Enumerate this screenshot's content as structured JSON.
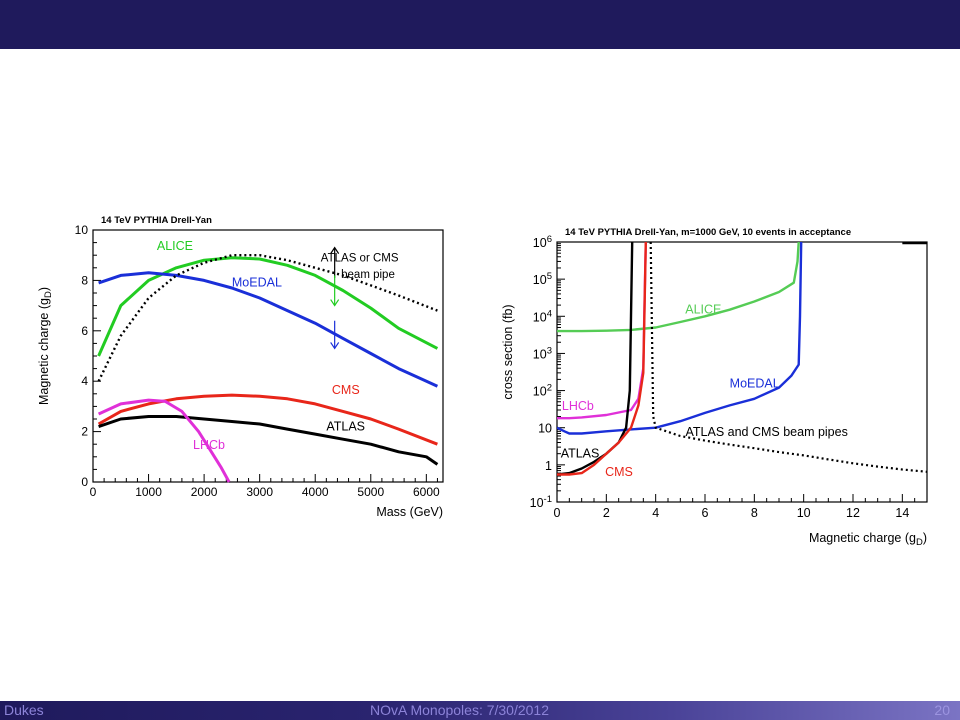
{
  "footer": {
    "left": "Dukes",
    "center": "NOvA Monopoles: 7/30/2012",
    "page": "20"
  },
  "chart_data": [
    {
      "type": "line",
      "title": "14 TeV PYTHIA Drell-Yan",
      "xlabel": "Mass (GeV)",
      "ylabel": "Magnetic charge (gD)",
      "xlim": [
        0,
        6300
      ],
      "ylim": [
        0,
        10
      ],
      "xticks": [
        "0",
        "1000",
        "2000",
        "3000",
        "4000",
        "5000",
        "6000"
      ],
      "yticks": [
        "0",
        "2",
        "4",
        "6",
        "8",
        "10"
      ],
      "annotation": [
        "ATLAS or CMS",
        "beam pipe"
      ],
      "series": [
        {
          "name": "ALICE",
          "color": "#22cc22",
          "x": [
            100,
            500,
            1000,
            1500,
            2000,
            2500,
            3000,
            3500,
            4000,
            4500,
            5000,
            5500,
            6200
          ],
          "y": [
            5.0,
            7.0,
            8.0,
            8.5,
            8.8,
            8.9,
            8.85,
            8.6,
            8.2,
            7.6,
            6.9,
            6.1,
            5.3
          ]
        },
        {
          "name": "MoEDAL",
          "color": "#1a2fd8",
          "x": [
            100,
            500,
            1000,
            1500,
            2000,
            2500,
            3000,
            3500,
            4000,
            4500,
            5000,
            5500,
            6200
          ],
          "y": [
            7.9,
            8.2,
            8.3,
            8.2,
            8.0,
            7.7,
            7.3,
            6.8,
            6.3,
            5.7,
            5.1,
            4.5,
            3.8
          ]
        },
        {
          "name": "ATLAS or CMS beam pipe",
          "color": "#000000",
          "dashed": true,
          "x": [
            100,
            500,
            1000,
            1500,
            2000,
            2500,
            3000,
            3500,
            4000,
            4500,
            5000,
            5500,
            6200
          ],
          "y": [
            4.0,
            5.8,
            7.3,
            8.2,
            8.7,
            9.0,
            9.0,
            8.8,
            8.5,
            8.2,
            7.8,
            7.4,
            6.8
          ]
        },
        {
          "name": "CMS",
          "color": "#e8261a",
          "x": [
            100,
            500,
            1000,
            1500,
            2000,
            2500,
            3000,
            3500,
            4000,
            4500,
            5000,
            5500,
            6200
          ],
          "y": [
            2.3,
            2.8,
            3.1,
            3.3,
            3.4,
            3.45,
            3.4,
            3.3,
            3.1,
            2.8,
            2.5,
            2.1,
            1.5
          ]
        },
        {
          "name": "ATLAS",
          "color": "#000000",
          "x": [
            100,
            500,
            1000,
            1500,
            2000,
            2500,
            3000,
            3500,
            4000,
            4500,
            5000,
            5500,
            6000,
            6200
          ],
          "y": [
            2.2,
            2.5,
            2.6,
            2.6,
            2.5,
            2.4,
            2.3,
            2.1,
            1.9,
            1.7,
            1.5,
            1.2,
            1.0,
            0.7
          ]
        },
        {
          "name": "LHCb",
          "color": "#e030d8",
          "x": [
            100,
            500,
            1000,
            1300,
            1600,
            1900,
            2100,
            2300,
            2450
          ],
          "y": [
            2.7,
            3.1,
            3.25,
            3.2,
            2.8,
            2.0,
            1.3,
            0.6,
            0.0
          ]
        }
      ]
    },
    {
      "type": "line",
      "title": "14 TeV PYTHIA Drell-Yan, m=1000 GeV, 10 events in acceptance",
      "xlabel": "Magnetic charge (gD)",
      "ylabel": "cross section (fb)",
      "xlim": [
        0,
        15
      ],
      "ylim": [
        0.1,
        1000000
      ],
      "yscale": "log",
      "xticks": [
        "0",
        "2",
        "4",
        "6",
        "8",
        "10",
        "12",
        "14"
      ],
      "yticks": [
        "10-1",
        "1",
        "10",
        "102",
        "103",
        "104",
        "105",
        "106"
      ],
      "series": [
        {
          "name": "ALICE",
          "color": "#55cc55",
          "x": [
            0,
            1,
            2,
            3,
            4,
            5,
            6,
            7,
            8,
            9,
            9.6,
            9.75,
            9.8
          ],
          "y": [
            4000,
            4000,
            4100,
            4300,
            5000,
            7000,
            10000,
            15000,
            25000,
            45000,
            80000,
            300000,
            1000000
          ]
        },
        {
          "name": "MoEDAL",
          "color": "#1a2fd8",
          "x": [
            0,
            0.3,
            0.5,
            1,
            2,
            3,
            4,
            5,
            6,
            7,
            8,
            9,
            9.5,
            9.8,
            9.85,
            9.9
          ],
          "y": [
            10,
            8,
            7,
            7,
            8,
            9,
            10,
            15,
            25,
            40,
            60,
            120,
            250,
            500,
            10000,
            1000000
          ]
        },
        {
          "name": "LHCb",
          "color": "#e030d8",
          "x": [
            0,
            0.5,
            1,
            2,
            3,
            3.3,
            3.5,
            3.55,
            3.6
          ],
          "y": [
            18,
            18,
            19,
            22,
            30,
            60,
            400,
            30000,
            1000000
          ]
        },
        {
          "name": "ATLAS",
          "color": "#000000",
          "x": [
            0,
            0.5,
            1,
            1.5,
            2,
            2.5,
            2.8,
            2.95,
            3.0,
            3.05
          ],
          "y": [
            0.55,
            0.6,
            0.8,
            1.2,
            2,
            4,
            10,
            100,
            10000,
            1000000
          ]
        },
        {
          "name": "CMS",
          "color": "#e8261a",
          "x": [
            0,
            0.5,
            1,
            1.5,
            2,
            2.5,
            3,
            3.3,
            3.5,
            3.55,
            3.6
          ],
          "y": [
            0.55,
            0.55,
            0.6,
            1,
            2,
            4,
            10,
            40,
            300,
            20000,
            1000000
          ]
        },
        {
          "name": "ATLAS and CMS beam pipes",
          "color": "#000000",
          "dashed": true,
          "x": [
            3.8,
            3.9,
            4,
            5,
            6,
            7,
            8,
            9,
            10,
            11,
            12,
            13,
            14,
            15
          ],
          "y": [
            1000000,
            20,
            10,
            6,
            4.5,
            3.5,
            2.8,
            2.2,
            1.8,
            1.4,
            1.1,
            0.9,
            0.75,
            0.65
          ]
        }
      ]
    }
  ]
}
